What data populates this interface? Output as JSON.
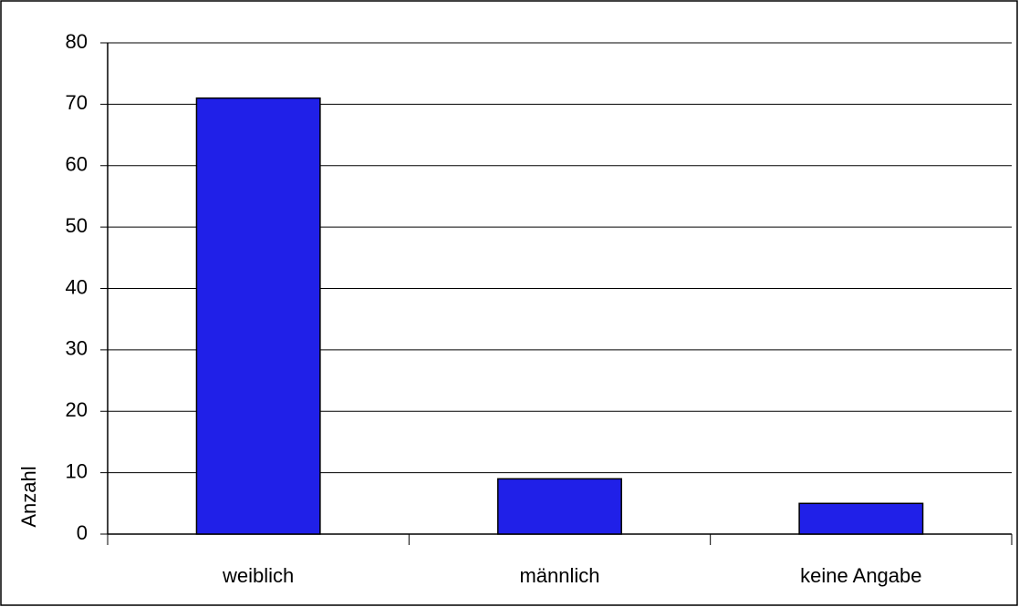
{
  "chart_data": {
    "type": "bar",
    "y_label": "Anzahl",
    "categories": [
      "weiblich",
      "männlich",
      "keine Angabe"
    ],
    "values": [
      71,
      9,
      5
    ],
    "color": "#2020e8",
    "ylim": [
      0,
      80
    ],
    "yticks": [
      0,
      10,
      20,
      30,
      40,
      50,
      60,
      70,
      80
    ],
    "grid": true
  }
}
